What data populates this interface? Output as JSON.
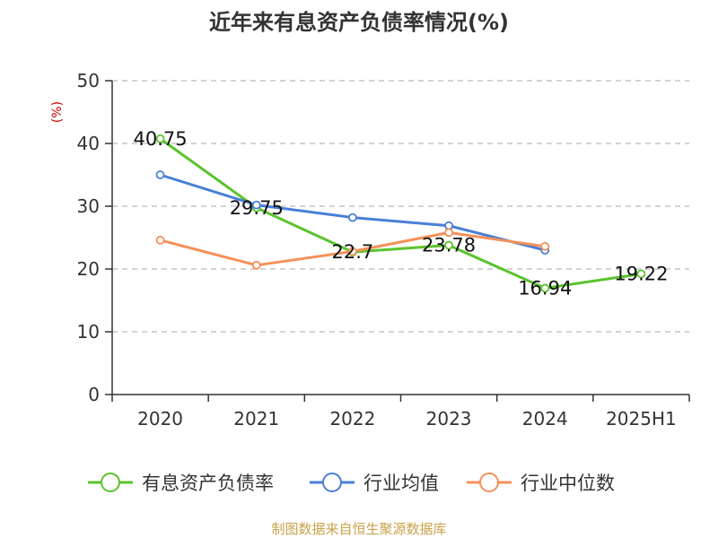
{
  "chart_data": {
    "type": "line",
    "title": "近年来有息资产负债率情况(%)",
    "ylabel": "(%)",
    "xlabel": "",
    "categories": [
      "2020",
      "2021",
      "2022",
      "2023",
      "2024",
      "2025H1"
    ],
    "ylim": [
      0,
      50
    ],
    "yticks": [
      0,
      10,
      20,
      30,
      40,
      50
    ],
    "grid": true,
    "legend_position": "bottom",
    "series": [
      {
        "name": "有息资产负债率",
        "color": "#5cc32e",
        "values": [
          40.75,
          29.75,
          22.7,
          23.78,
          16.94,
          19.22
        ],
        "labels": [
          "40.75",
          "29.75",
          "22.7",
          "23.78",
          "16.94",
          "19.22"
        ]
      },
      {
        "name": "行业均值",
        "color": "#4a7fd6",
        "values": [
          35.0,
          30.2,
          28.2,
          26.9,
          23.0,
          null
        ]
      },
      {
        "name": "行业中位数",
        "color": "#f5905a",
        "values": [
          24.6,
          20.6,
          22.8,
          25.8,
          23.6,
          null
        ]
      }
    ],
    "source": "制图数据来自恒生聚源数据库",
    "colors": {
      "ylabel": "#cc0000",
      "source": "#c8a24a",
      "axis": "#333333",
      "grid": "#bbbbbb"
    }
  }
}
